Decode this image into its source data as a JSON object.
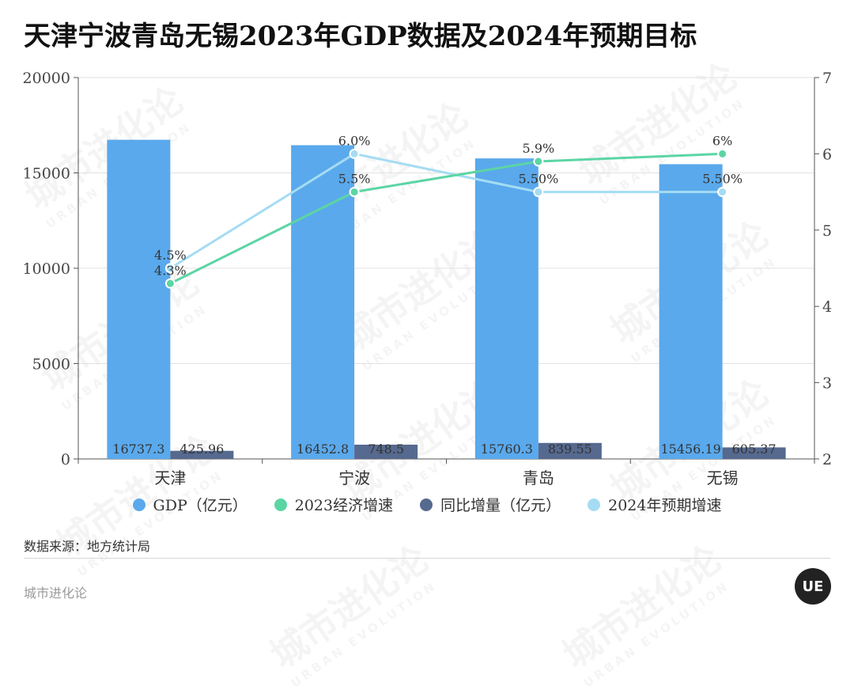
{
  "title": "天津宁波青岛无锡2023年GDP数据及2024年预期目标",
  "source": "数据来源：地方统计局",
  "brand": "城市进化论",
  "logo_text": "UE",
  "watermark": {
    "cn": "城市进化论",
    "en": "URBAN EVOLUTION"
  },
  "colors": {
    "gdp": "#5aa9ec",
    "growth2023": "#5cd5a4",
    "increase": "#56698f",
    "target2024": "#a5dcf3"
  },
  "legend": [
    {
      "label": "GDP（亿元）",
      "color": "#5aa9ec"
    },
    {
      "label": "2023经济增速",
      "color": "#5cd5a4"
    },
    {
      "label": "同比增量（亿元）",
      "color": "#56698f"
    },
    {
      "label": "2024年预期增速",
      "color": "#a5dcf3"
    }
  ],
  "chart_data": {
    "type": "bar",
    "categories": [
      "天津",
      "宁波",
      "青岛",
      "无锡"
    ],
    "left_axis": {
      "min": 0,
      "max": 20000,
      "ticks": [
        0,
        5000,
        10000,
        15000,
        20000
      ]
    },
    "right_axis": {
      "min": 2,
      "max": 7,
      "ticks": [
        2,
        3,
        4,
        5,
        6,
        7
      ]
    },
    "bar_series": [
      {
        "name": "GDP（亿元）",
        "values": [
          16737.3,
          16452.8,
          15760.3,
          15456.19
        ],
        "labels": [
          "16737.3",
          "16452.8",
          "15760.3",
          "15456.19"
        ]
      },
      {
        "name": "同比增量（亿元）",
        "values": [
          425.96,
          748.5,
          839.55,
          605.37
        ],
        "labels": [
          "425.96",
          "748.5",
          "839.55",
          "605.37"
        ]
      }
    ],
    "line_series": [
      {
        "name": "2023经济增速",
        "values": [
          4.3,
          5.5,
          5.9,
          6.0
        ],
        "labels": [
          "4.3%",
          "5.5%",
          "5.9%",
          "6%"
        ]
      },
      {
        "name": "2024年预期增速",
        "values": [
          4.5,
          6.0,
          5.5,
          5.5
        ],
        "labels": [
          "4.5%",
          "6.0%",
          "5.50%",
          "5.50%"
        ]
      }
    ]
  }
}
